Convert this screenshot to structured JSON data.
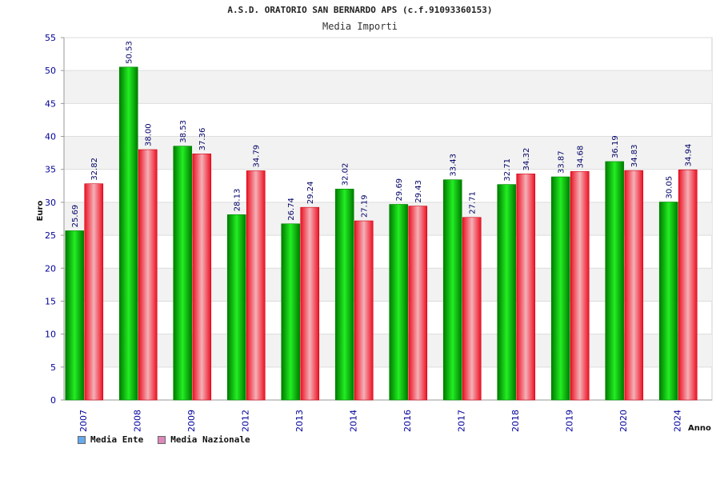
{
  "chart_data": {
    "type": "bar",
    "title": "A.S.D. ORATORIO SAN BERNARDO APS (c.f.91093360153)",
    "subtitle": "Media Importi",
    "ylabel": "Euro",
    "xlabel": "Anno",
    "ylim": [
      0,
      55
    ],
    "yticks": [
      "0",
      "5",
      "10",
      "15",
      "20",
      "25",
      "30",
      "35",
      "40",
      "45",
      "50",
      "55"
    ],
    "grid": true,
    "legend_position": "bottom-left",
    "categories": [
      "2007",
      "2008",
      "2009",
      "2012",
      "2013",
      "2014",
      "2016",
      "2017",
      "2018",
      "2019",
      "2020",
      "2024"
    ],
    "series": [
      {
        "name": "Media Ente",
        "color": "#00cc00",
        "legend_color": "#66aaee",
        "values": [
          25.69,
          50.53,
          38.53,
          28.13,
          26.74,
          32.02,
          29.69,
          33.43,
          32.71,
          33.87,
          36.19,
          30.05
        ],
        "labels": [
          "25.69",
          "50.53",
          "38.53",
          "28.13",
          "26.74",
          "32.02",
          "29.69",
          "33.43",
          "32.71",
          "33.87",
          "36.19",
          "30.05"
        ]
      },
      {
        "name": "Media Nazionale",
        "color": "#ee2233",
        "legend_color": "#dd88bb",
        "values": [
          32.82,
          38.0,
          37.36,
          34.79,
          29.24,
          27.19,
          29.43,
          27.71,
          34.32,
          34.68,
          34.83,
          34.94
        ],
        "labels": [
          "32.82",
          "38.00",
          "37.36",
          "34.79",
          "29.24",
          "27.19",
          "29.43",
          "27.71",
          "34.32",
          "34.68",
          "34.83",
          "34.94"
        ]
      }
    ]
  }
}
